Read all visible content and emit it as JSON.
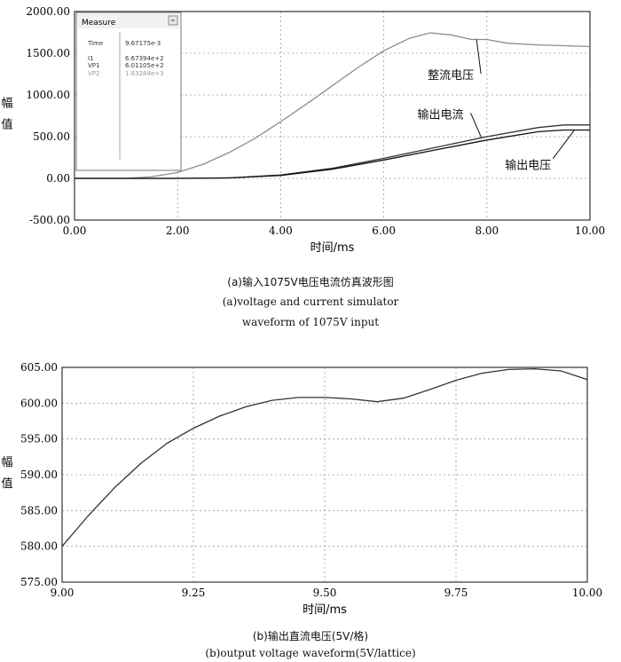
{
  "chart_data": [
    {
      "type": "line",
      "xlabel": "时间/ms",
      "ylabel": [
        "幅",
        "值"
      ],
      "xlim": [
        0,
        10
      ],
      "ylim": [
        -500,
        2000
      ],
      "xticks": [
        "0.00",
        "2.00",
        "4.00",
        "6.00",
        "8.00",
        "10.00"
      ],
      "yticks": [
        "-500.00",
        "0.00",
        "500.00",
        "1000.00",
        "1500.00",
        "2000.00"
      ],
      "grid": true,
      "series": [
        {
          "name": "整流电压",
          "color": "#8c8c8c",
          "x": [
            0,
            1,
            1.5,
            2,
            2.5,
            3,
            3.5,
            4,
            4.5,
            5,
            5.5,
            6,
            6.5,
            6.9,
            7.3,
            7.7,
            8.0,
            8.4,
            9,
            9.5,
            10
          ],
          "values": [
            0,
            0,
            20,
            70,
            170,
            310,
            480,
            680,
            890,
            1110,
            1330,
            1530,
            1680,
            1745,
            1720,
            1665,
            1665,
            1620,
            1600,
            1590,
            1580
          ]
        },
        {
          "name": "输出电流",
          "color": "#333333",
          "x": [
            0,
            1,
            2,
            3,
            4,
            5,
            6,
            7,
            8,
            9,
            9.5,
            10
          ],
          "values": [
            0,
            0,
            0,
            5,
            40,
            120,
            240,
            370,
            500,
            610,
            640,
            640
          ]
        },
        {
          "name": "输出电压",
          "color": "#111111",
          "x": [
            0,
            1,
            2,
            3,
            4,
            5,
            6,
            7,
            8,
            9,
            9.5,
            10
          ],
          "values": [
            0,
            0,
            0,
            5,
            35,
            110,
            220,
            340,
            460,
            560,
            580,
            580
          ]
        }
      ],
      "annotations": [
        {
          "text": "整流电压",
          "x": 7.3,
          "y": 1190
        },
        {
          "text": "输出电流",
          "x": 7.1,
          "y": 720
        },
        {
          "text": "输出电压",
          "x": 8.8,
          "y": 110
        }
      ],
      "measure_panel": {
        "title": "Measure",
        "rows": [
          {
            "label": "Time",
            "value": "9.67175e-3"
          },
          {
            "label": "I1",
            "value": "6.67394e+2"
          },
          {
            "label": "VP1",
            "value": "6.01105e+2"
          },
          {
            "label": "VP2",
            "value": "1.63284e+3"
          }
        ]
      }
    },
    {
      "type": "line",
      "xlabel": "时间/ms",
      "ylabel": [
        "幅",
        "值"
      ],
      "xlim": [
        9,
        10
      ],
      "ylim": [
        575,
        605
      ],
      "xticks": [
        "9.00",
        "9.25",
        "9.50",
        "9.75",
        "10.00"
      ],
      "yticks": [
        "575.00",
        "580.00",
        "585.00",
        "590.00",
        "595.00",
        "600.00",
        "605.00"
      ],
      "grid": true,
      "series": [
        {
          "name": "output voltage",
          "color": "#333333",
          "x": [
            9.0,
            9.05,
            9.1,
            9.15,
            9.2,
            9.25,
            9.3,
            9.35,
            9.4,
            9.45,
            9.5,
            9.55,
            9.6,
            9.65,
            9.7,
            9.75,
            9.8,
            9.85,
            9.9,
            9.95,
            10.0
          ],
          "values": [
            580.0,
            584.3,
            588.2,
            591.6,
            594.4,
            596.5,
            598.2,
            599.5,
            600.4,
            600.8,
            600.8,
            600.6,
            600.2,
            600.7,
            601.9,
            603.2,
            604.2,
            604.7,
            604.8,
            604.5,
            603.3
          ]
        }
      ]
    }
  ],
  "captions": {
    "a_zh": "(a)输入1075V电压电流仿真波形图",
    "a_en1": "(a)voltage and current simulator",
    "a_en2": "waveform of 1075V input",
    "b_zh": "(b)输出直流电压(5V/格)",
    "b_en": "(b)output voltage waveform(5V/lattice)"
  }
}
